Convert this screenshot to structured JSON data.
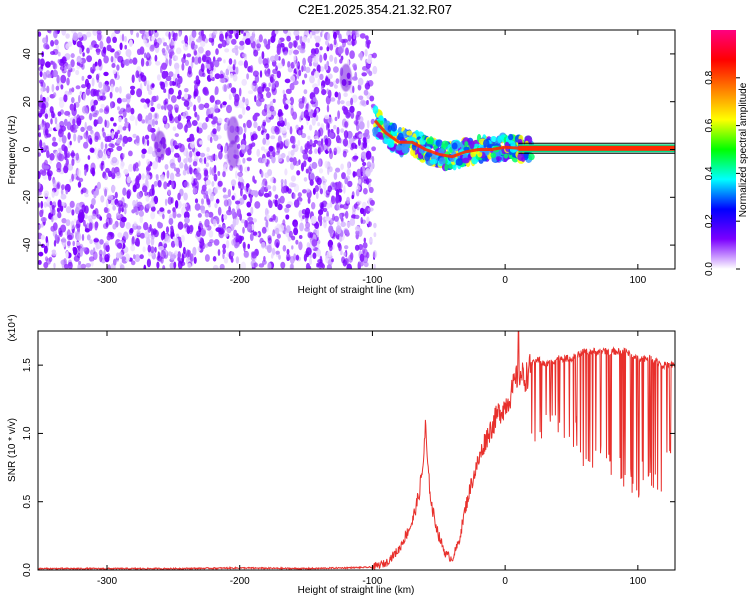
{
  "figure": {
    "title": "C2E1.2025.354.21.32.R07"
  },
  "chart_data": [
    {
      "type": "heatmap",
      "xlabel": "Height of straight line (km)",
      "ylabel": "Frequency (Hz)",
      "xlim": [
        -352,
        128
      ],
      "ylim": [
        -50,
        50
      ],
      "xticks": [
        -300,
        -200,
        -100,
        0,
        100
      ],
      "yticks": [
        -40,
        -20,
        0,
        20,
        40
      ],
      "grid": false,
      "noise_region_x": [
        -352,
        -98
      ],
      "signal_track": {
        "x": [
          -98,
          -90,
          -80,
          -70,
          -60,
          -50,
          -40,
          -30,
          -20,
          -10,
          0,
          10,
          20,
          60,
          100,
          128
        ],
        "y": [
          12,
          7,
          3,
          3,
          0,
          -2,
          -3,
          -1,
          0,
          0,
          1,
          0.5,
          0.5,
          0.5,
          0.5,
          0.5
        ]
      },
      "colorbar": {
        "label": "Normalized spectral amplitude",
        "range": [
          0,
          1
        ],
        "ticks": [
          0.0,
          0.2,
          0.4,
          0.6,
          0.8
        ],
        "tick_labels": [
          "0.0",
          "0.2",
          "0.4",
          "0.6",
          "0.8"
        ],
        "colors": [
          "#ffffff",
          "#7b00ff",
          "#0000ff",
          "#00ffff",
          "#00ff00",
          "#ffff00",
          "#ff8000",
          "#ff0000",
          "#ff0080"
        ]
      }
    },
    {
      "type": "line",
      "xlabel": "Height of straight line (km)",
      "ylabel": "SNR (10 * v/v)",
      "y_multiplier": "(x10⁴)",
      "xlim": [
        -352,
        128
      ],
      "ylim": [
        0,
        1.75
      ],
      "xticks": [
        -300,
        -200,
        -100,
        0,
        100
      ],
      "yticks": [
        0.0,
        0.5,
        1.0,
        1.5
      ],
      "ytick_labels": [
        "0.0",
        "0.5",
        "1.0",
        "1.5"
      ],
      "grid": false,
      "series": [
        {
          "color": "#e8302c",
          "x": [
            -352,
            -300,
            -250,
            -200,
            -150,
            -100,
            -90,
            -80,
            -75,
            -70,
            -65,
            -62,
            -60,
            -58,
            -55,
            -50,
            -45,
            -40,
            -35,
            -30,
            -25,
            -20,
            -15,
            -10,
            -5,
            0,
            5,
            10,
            15,
            20,
            25,
            30,
            40,
            50,
            60,
            70,
            80,
            90,
            100,
            110,
            120,
            128
          ],
          "y": [
            0.01,
            0.01,
            0.01,
            0.015,
            0.01,
            0.02,
            0.05,
            0.15,
            0.25,
            0.35,
            0.55,
            0.75,
            1.05,
            0.7,
            0.45,
            0.25,
            0.12,
            0.08,
            0.2,
            0.45,
            0.65,
            0.8,
            0.95,
            1.05,
            1.15,
            1.2,
            1.3,
            1.45,
            1.4,
            1.5,
            1.55,
            1.5,
            1.55,
            1.55,
            1.6,
            1.6,
            1.6,
            1.6,
            1.55,
            1.55,
            1.5,
            1.5
          ],
          "dip_region_x": [
            20,
            128
          ],
          "dip_low": [
            0.9,
            1.0,
            0.8,
            0.9,
            0.7,
            0.65,
            0.6,
            0.55,
            0.5,
            0.65,
            0.55,
            0.6
          ]
        }
      ]
    }
  ]
}
